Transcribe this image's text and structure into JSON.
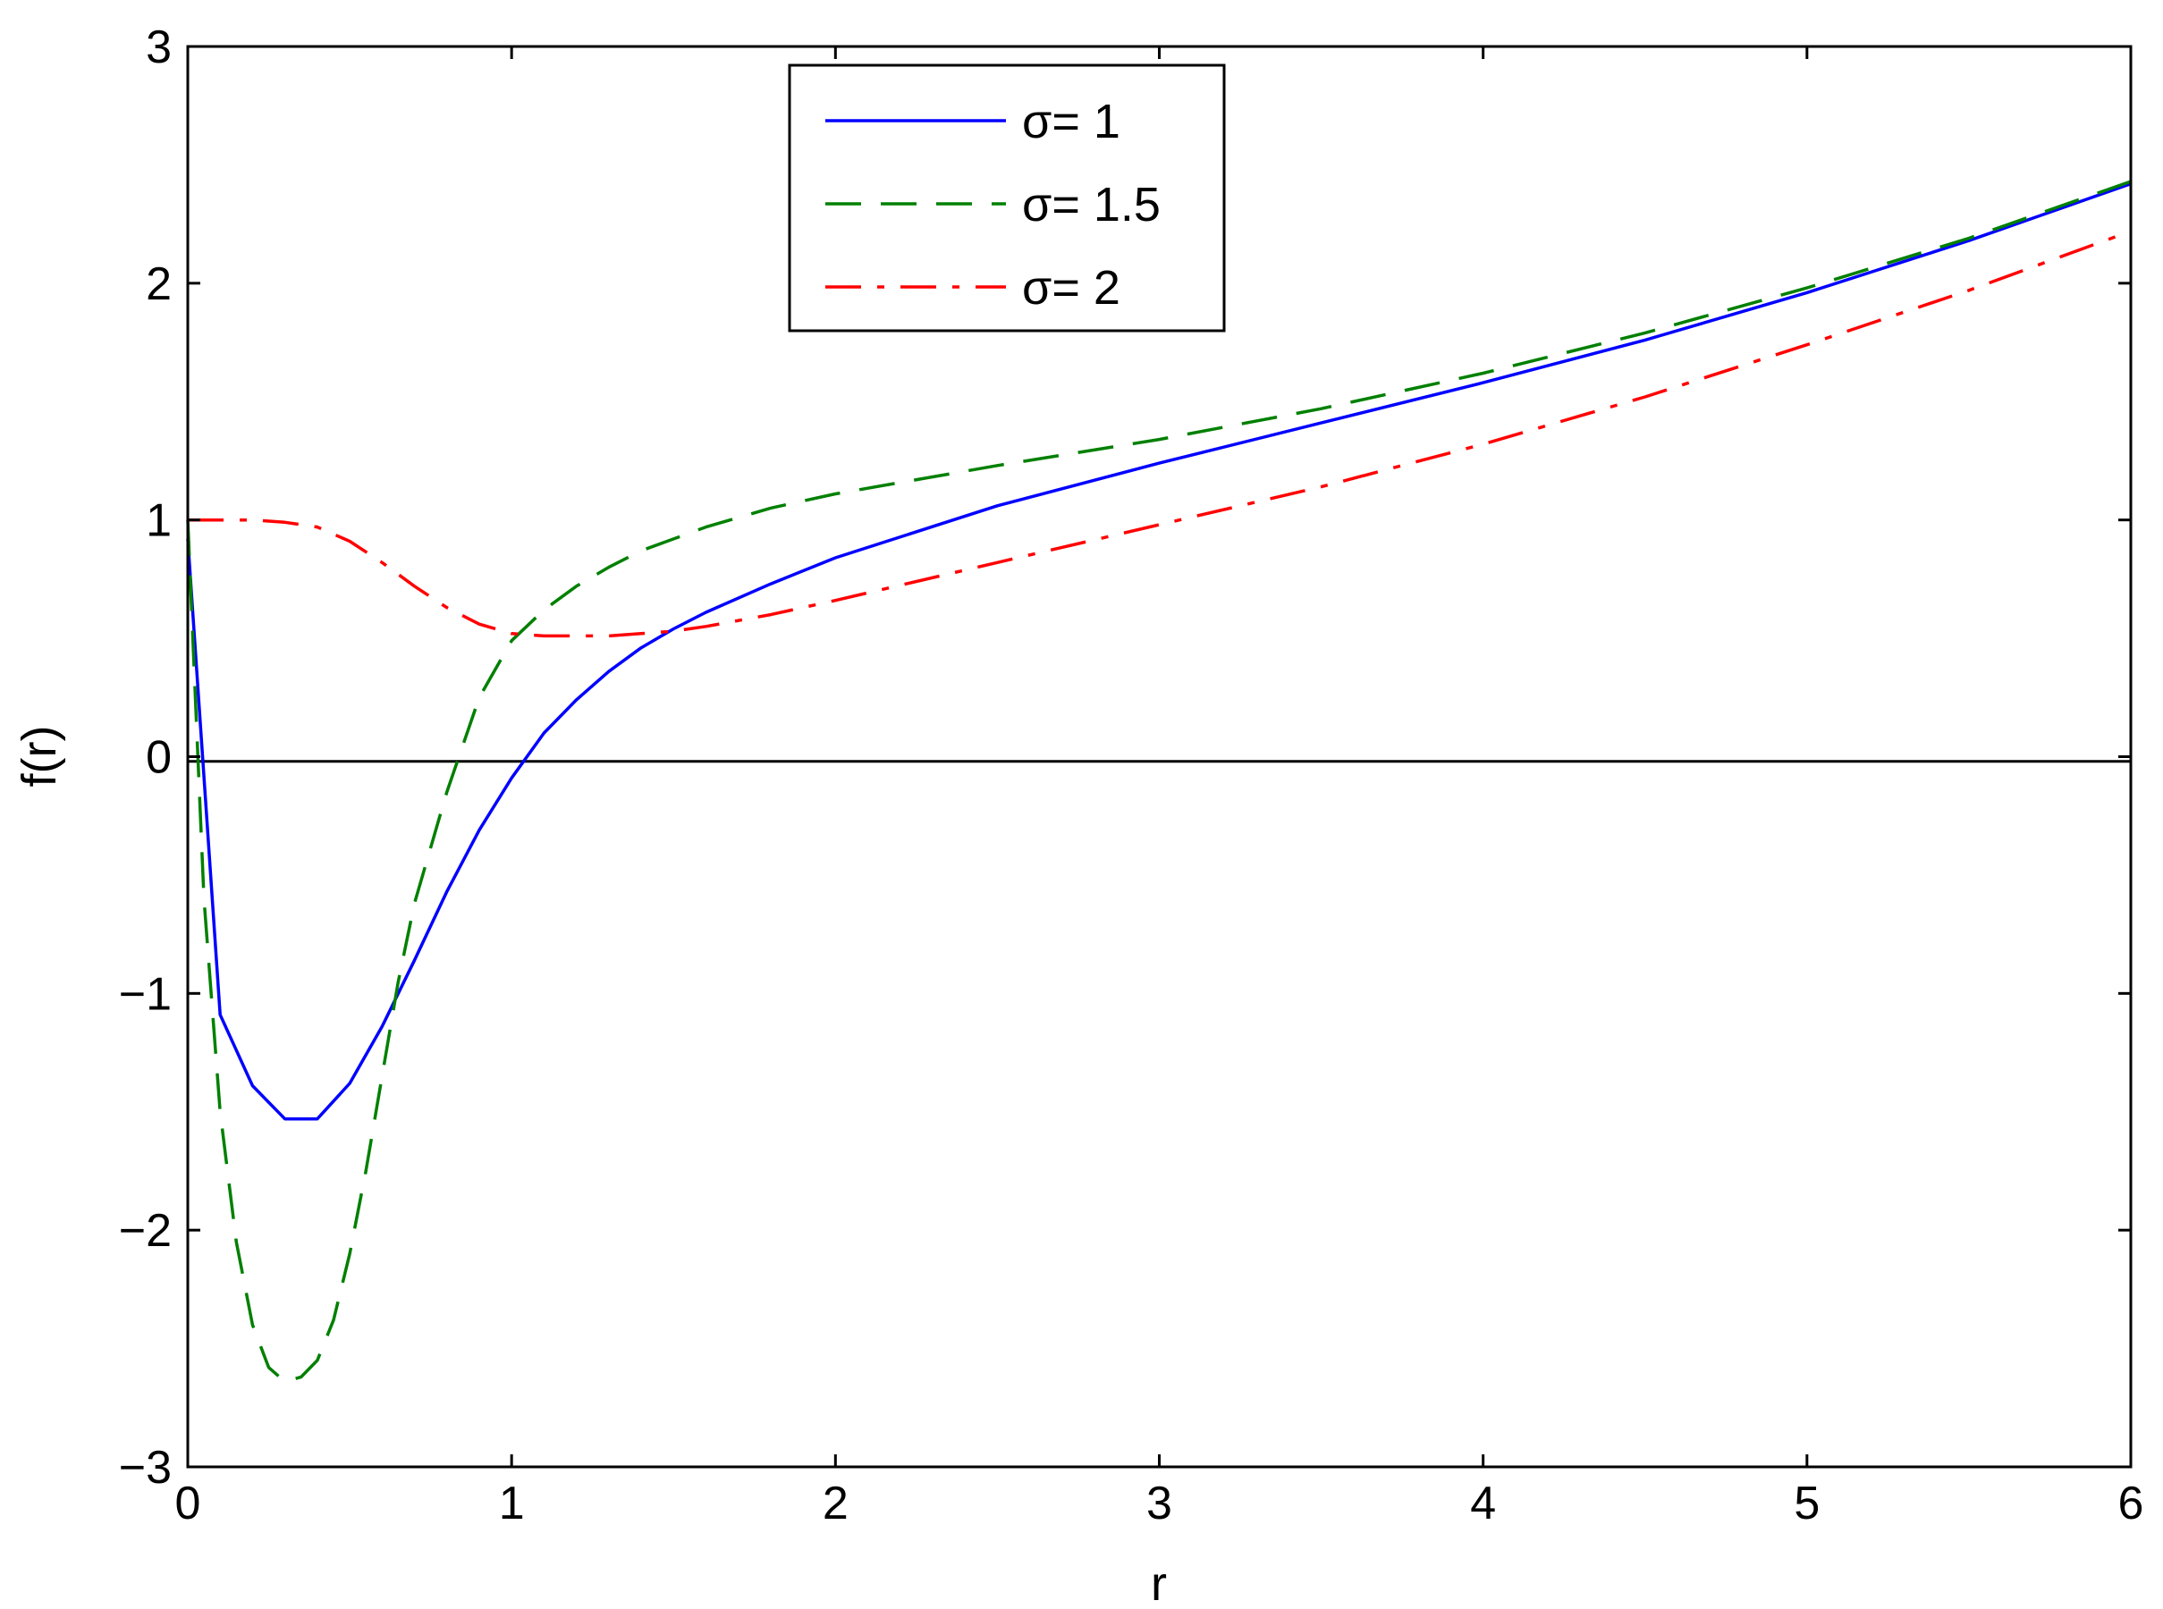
{
  "chart_data": {
    "type": "line",
    "title": "",
    "xlabel": "r",
    "ylabel": "f(r)",
    "xlim": [
      0,
      6
    ],
    "ylim": [
      -3,
      3
    ],
    "xticks": [
      0,
      1,
      2,
      3,
      4,
      5,
      6
    ],
    "yticks": [
      -3,
      -2,
      -1,
      0,
      1,
      2,
      3
    ],
    "xtick_labels": [
      "0",
      "1",
      "2",
      "3",
      "4",
      "5",
      "6"
    ],
    "ytick_labels": [
      "−3",
      "−2",
      "−1",
      "0",
      "1",
      "2",
      "3"
    ],
    "grid": false,
    "legend_position": "top-center",
    "reference_line": {
      "y": -0.02,
      "color": "#000000"
    },
    "series": [
      {
        "name": "σ= 1",
        "color": "#0000ff",
        "dash": "solid",
        "x": [
          0,
          0.1,
          0.2,
          0.3,
          0.4,
          0.5,
          0.6,
          0.7,
          0.8,
          0.9,
          1.0,
          1.1,
          1.2,
          1.3,
          1.4,
          1.5,
          1.6,
          1.8,
          2.0,
          2.5,
          3.0,
          3.5,
          4.0,
          4.5,
          5.0,
          5.5,
          6.0
        ],
        "y": [
          0.92,
          -1.09,
          -1.39,
          -1.53,
          -1.53,
          -1.38,
          -1.14,
          -0.86,
          -0.57,
          -0.31,
          -0.09,
          0.1,
          0.24,
          0.36,
          0.46,
          0.54,
          0.61,
          0.73,
          0.84,
          1.06,
          1.24,
          1.41,
          1.58,
          1.76,
          1.96,
          2.18,
          2.42
        ]
      },
      {
        "name": "σ= 1.5",
        "color": "#008000",
        "dash": "dashed",
        "x": [
          0,
          0.05,
          0.1,
          0.15,
          0.2,
          0.25,
          0.3,
          0.35,
          0.4,
          0.45,
          0.5,
          0.55,
          0.6,
          0.65,
          0.7,
          0.8,
          0.9,
          1.0,
          1.1,
          1.2,
          1.3,
          1.4,
          1.5,
          1.6,
          1.8,
          2.0,
          2.5,
          3.0,
          3.5,
          4.0,
          4.5,
          5.0,
          5.5,
          6.0
        ],
        "y": [
          1.0,
          -0.6,
          -1.5,
          -2.05,
          -2.4,
          -2.58,
          -2.64,
          -2.62,
          -2.55,
          -2.38,
          -2.1,
          -1.75,
          -1.35,
          -0.95,
          -0.62,
          -0.15,
          0.25,
          0.49,
          0.62,
          0.72,
          0.8,
          0.87,
          0.92,
          0.97,
          1.05,
          1.11,
          1.23,
          1.34,
          1.47,
          1.62,
          1.79,
          1.98,
          2.19,
          2.43
        ]
      },
      {
        "name": "σ= 2",
        "color": "#ff0000",
        "dash": "dashdot",
        "x": [
          0,
          0.1,
          0.2,
          0.3,
          0.4,
          0.5,
          0.6,
          0.7,
          0.8,
          0.9,
          1.0,
          1.1,
          1.2,
          1.3,
          1.4,
          1.5,
          1.6,
          1.8,
          2.0,
          2.5,
          3.0,
          3.5,
          4.0,
          4.5,
          5.0,
          5.5,
          6.0
        ],
        "y": [
          1.0,
          1.0,
          1.0,
          0.99,
          0.97,
          0.91,
          0.82,
          0.72,
          0.63,
          0.56,
          0.52,
          0.51,
          0.51,
          0.51,
          0.52,
          0.53,
          0.55,
          0.6,
          0.66,
          0.82,
          0.98,
          1.14,
          1.32,
          1.52,
          1.74,
          1.97,
          2.22
        ]
      }
    ]
  }
}
